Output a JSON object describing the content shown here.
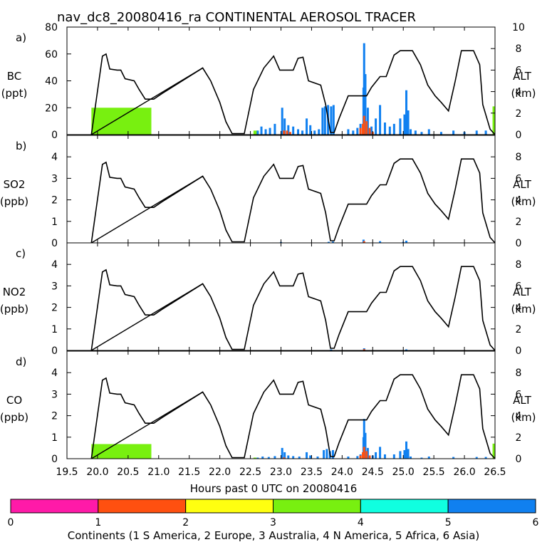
{
  "title": "nav_dc8_20080416_ra CONTINENTAL AEROSOL TRACER",
  "colors": {
    "s_america": "#ff1aa8",
    "europe": "#ff5010",
    "australia": "#ffff10",
    "n_america": "#78f010",
    "africa": "#10ffe0",
    "asia": "#1080f0",
    "altitude_line": "#000000"
  },
  "chart_data": {
    "type": "bar",
    "title": "nav_dc8_20080416_ra CONTINENTAL AEROSOL TRACER",
    "xlabel": "Hours past 0 UTC on 20080416",
    "xlim": [
      19.5,
      26.5
    ],
    "xticks": [
      "19.5",
      "20.0",
      "20.5",
      "21.0",
      "21.5",
      "22.0",
      "22.5",
      "23.0",
      "23.5",
      "24.0",
      "24.5",
      "25.0",
      "25.5",
      "26.0",
      "26.5"
    ],
    "altitude_axis": {
      "label": "ALT",
      "unit": "(km)",
      "ylim": [
        0,
        10
      ]
    },
    "altitude_km": [
      [
        19.9,
        0
      ],
      [
        20.08,
        7.3
      ],
      [
        20.14,
        7.5
      ],
      [
        20.2,
        6.1
      ],
      [
        20.32,
        6.0
      ],
      [
        20.38,
        6.0
      ],
      [
        20.45,
        5.2
      ],
      [
        20.6,
        5.0
      ],
      [
        20.68,
        4.2
      ],
      [
        20.78,
        3.3
      ],
      [
        20.92,
        3.3
      ],
      [
        21.05,
        3.8
      ],
      [
        21.72,
        6.2
      ],
      [
        21.85,
        5.0
      ],
      [
        22.0,
        3.0
      ],
      [
        22.1,
        1.2
      ],
      [
        22.2,
        0.1
      ],
      [
        22.4,
        0.1
      ],
      [
        22.55,
        4.2
      ],
      [
        22.72,
        6.2
      ],
      [
        22.88,
        7.3
      ],
      [
        22.98,
        6.0
      ],
      [
        23.2,
        6.0
      ],
      [
        23.28,
        7.1
      ],
      [
        23.36,
        7.2
      ],
      [
        23.45,
        5.0
      ],
      [
        23.65,
        4.6
      ],
      [
        23.73,
        2.8
      ],
      [
        23.81,
        0.2
      ],
      [
        23.87,
        0.2
      ],
      [
        23.95,
        1.5
      ],
      [
        24.1,
        3.6
      ],
      [
        24.4,
        3.6
      ],
      [
        24.48,
        4.4
      ],
      [
        24.62,
        5.4
      ],
      [
        24.72,
        5.4
      ],
      [
        24.85,
        7.4
      ],
      [
        24.95,
        7.8
      ],
      [
        25.15,
        7.8
      ],
      [
        25.28,
        6.5
      ],
      [
        25.4,
        4.6
      ],
      [
        25.52,
        3.6
      ],
      [
        25.62,
        3.0
      ],
      [
        25.74,
        2.2
      ],
      [
        25.85,
        5.0
      ],
      [
        25.95,
        7.8
      ],
      [
        26.15,
        7.8
      ],
      [
        26.25,
        6.5
      ],
      [
        26.3,
        2.8
      ],
      [
        26.42,
        0.5
      ],
      [
        26.5,
        0
      ]
    ],
    "panels": [
      {
        "letter": "a)",
        "species": "BC",
        "unit": "(ppt)",
        "ylim": [
          0,
          80
        ],
        "yticks": [
          "0",
          "20",
          "40",
          "60",
          "80"
        ],
        "alt_ticks": [
          "0",
          "2",
          "4",
          "6",
          "8",
          "10"
        ],
        "series": [
          {
            "name": "N America",
            "color_key": "n_america",
            "segments": [
              [
                19.9,
                20.88,
                20
              ],
              [
                22.55,
                22.62,
                3
              ],
              [
                26.46,
                26.5,
                21
              ]
            ]
          },
          {
            "name": "Asia",
            "color_key": "asia",
            "spikes": [
              [
                22.62,
                3
              ],
              [
                22.68,
                6
              ],
              [
                22.75,
                4
              ],
              [
                22.82,
                5
              ],
              [
                22.9,
                8
              ],
              [
                23.02,
                20
              ],
              [
                23.06,
                12
              ],
              [
                23.12,
                7
              ],
              [
                23.2,
                6
              ],
              [
                23.28,
                4
              ],
              [
                23.35,
                3
              ],
              [
                23.42,
                12
              ],
              [
                23.48,
                7
              ],
              [
                23.55,
                3
              ],
              [
                23.62,
                4
              ],
              [
                23.68,
                20
              ],
              [
                23.72,
                21
              ],
              [
                23.77,
                22
              ],
              [
                23.82,
                21
              ],
              [
                23.86,
                22
              ],
              [
                24.1,
                4
              ],
              [
                24.18,
                3
              ],
              [
                24.25,
                5
              ],
              [
                24.3,
                8
              ],
              [
                24.35,
                35
              ],
              [
                24.36,
                68
              ],
              [
                24.38,
                45
              ],
              [
                24.42,
                20
              ],
              [
                24.48,
                6
              ],
              [
                24.55,
                12
              ],
              [
                24.62,
                22
              ],
              [
                24.7,
                9
              ],
              [
                24.78,
                6
              ],
              [
                24.85,
                8
              ],
              [
                24.95,
                12
              ],
              [
                25.02,
                15
              ],
              [
                25.05,
                33
              ],
              [
                25.08,
                18
              ],
              [
                25.12,
                4
              ],
              [
                25.2,
                3
              ],
              [
                25.3,
                2
              ],
              [
                25.42,
                4
              ],
              [
                25.62,
                2
              ],
              [
                25.82,
                3
              ],
              [
                26.0,
                2
              ],
              [
                26.2,
                3
              ],
              [
                26.35,
                3
              ]
            ]
          },
          {
            "name": "Europe",
            "color_key": "europe",
            "spikes": [
              [
                23.05,
                3
              ],
              [
                23.1,
                3
              ],
              [
                23.15,
                2
              ],
              [
                24.3,
                5
              ],
              [
                24.34,
                8
              ],
              [
                24.36,
                14
              ],
              [
                24.4,
                10
              ],
              [
                24.45,
                5
              ],
              [
                24.5,
                2
              ]
            ]
          }
        ]
      },
      {
        "letter": "b)",
        "species": "SO2",
        "unit": "(ppb)",
        "ylim": [
          0,
          5
        ],
        "yticks": [
          "0",
          "1",
          "2",
          "3",
          "4"
        ],
        "alt_ticks": [
          "0",
          "2",
          "4",
          "6",
          "8"
        ],
        "series": [
          {
            "name": "Asia",
            "color_key": "asia",
            "spikes": [
              [
                23.0,
                0.04
              ],
              [
                23.78,
                0.05
              ],
              [
                23.85,
                0.06
              ],
              [
                24.35,
                0.15
              ],
              [
                24.62,
                0.08
              ],
              [
                25.0,
                0.05
              ],
              [
                25.05,
                0.1
              ]
            ]
          },
          {
            "name": "Europe",
            "color_key": "europe",
            "spikes": [
              [
                24.36,
                0.08
              ]
            ]
          }
        ]
      },
      {
        "letter": "c)",
        "species": "NO2",
        "unit": "(ppb)",
        "ylim": [
          0,
          5
        ],
        "yticks": [
          "0",
          "1",
          "2",
          "3",
          "4"
        ],
        "alt_ticks": [
          "0",
          "2",
          "4",
          "6",
          "8"
        ],
        "series": [
          {
            "name": "Asia",
            "color_key": "asia",
            "spikes": [
              [
                23.82,
                0.05
              ],
              [
                24.36,
                0.1
              ],
              [
                25.05,
                0.05
              ]
            ]
          },
          {
            "name": "Europe",
            "color_key": "europe",
            "spikes": [
              [
                24.36,
                0.06
              ]
            ]
          }
        ]
      },
      {
        "letter": "d)",
        "species": "CO",
        "unit": "(ppb)",
        "ylim": [
          0,
          5
        ],
        "yticks": [
          "0",
          "1",
          "2",
          "3",
          "4"
        ],
        "alt_ticks": [
          "0",
          "2",
          "4",
          "6",
          "8"
        ],
        "series": [
          {
            "name": "N America",
            "color_key": "n_america",
            "segments": [
              [
                19.9,
                20.88,
                0.68
              ],
              [
                22.55,
                22.6,
                0.05
              ],
              [
                26.46,
                26.5,
                0.7
              ]
            ]
          },
          {
            "name": "Asia",
            "color_key": "asia",
            "spikes": [
              [
                22.62,
                0.05
              ],
              [
                22.7,
                0.1
              ],
              [
                22.8,
                0.08
              ],
              [
                22.9,
                0.12
              ],
              [
                23.02,
                0.5
              ],
              [
                23.06,
                0.3
              ],
              [
                23.12,
                0.15
              ],
              [
                23.2,
                0.12
              ],
              [
                23.3,
                0.1
              ],
              [
                23.42,
                0.3
              ],
              [
                23.48,
                0.15
              ],
              [
                23.6,
                0.1
              ],
              [
                23.7,
                0.4
              ],
              [
                23.75,
                0.45
              ],
              [
                23.8,
                0.35
              ],
              [
                23.85,
                0.4
              ],
              [
                24.1,
                0.1
              ],
              [
                24.25,
                0.12
              ],
              [
                24.3,
                0.2
              ],
              [
                24.35,
                1.0
              ],
              [
                24.36,
                1.85
              ],
              [
                24.38,
                1.2
              ],
              [
                24.42,
                0.5
              ],
              [
                24.5,
                0.15
              ],
              [
                24.55,
                0.3
              ],
              [
                24.62,
                0.55
              ],
              [
                24.7,
                0.2
              ],
              [
                24.85,
                0.2
              ],
              [
                24.95,
                0.35
              ],
              [
                25.02,
                0.4
              ],
              [
                25.05,
                0.8
              ],
              [
                25.08,
                0.45
              ],
              [
                25.12,
                0.1
              ],
              [
                25.3,
                0.05
              ],
              [
                25.42,
                0.1
              ],
              [
                25.82,
                0.08
              ],
              [
                26.2,
                0.08
              ],
              [
                26.35,
                0.08
              ]
            ]
          },
          {
            "name": "Europe",
            "color_key": "europe",
            "spikes": [
              [
                23.05,
                0.06
              ],
              [
                24.3,
                0.15
              ],
              [
                24.34,
                0.3
              ],
              [
                24.36,
                0.55
              ],
              [
                24.4,
                0.35
              ],
              [
                24.45,
                0.15
              ]
            ]
          }
        ]
      }
    ],
    "colorbar": {
      "ticks": [
        "0",
        "1",
        "2",
        "3",
        "4",
        "5",
        "6"
      ],
      "segment_keys": [
        "s_america",
        "europe",
        "australia",
        "n_america",
        "africa",
        "asia"
      ],
      "label": "Continents (1 S America, 2 Europe, 3 Australia, 4 N America, 5 Africa, 6 Asia)"
    }
  }
}
